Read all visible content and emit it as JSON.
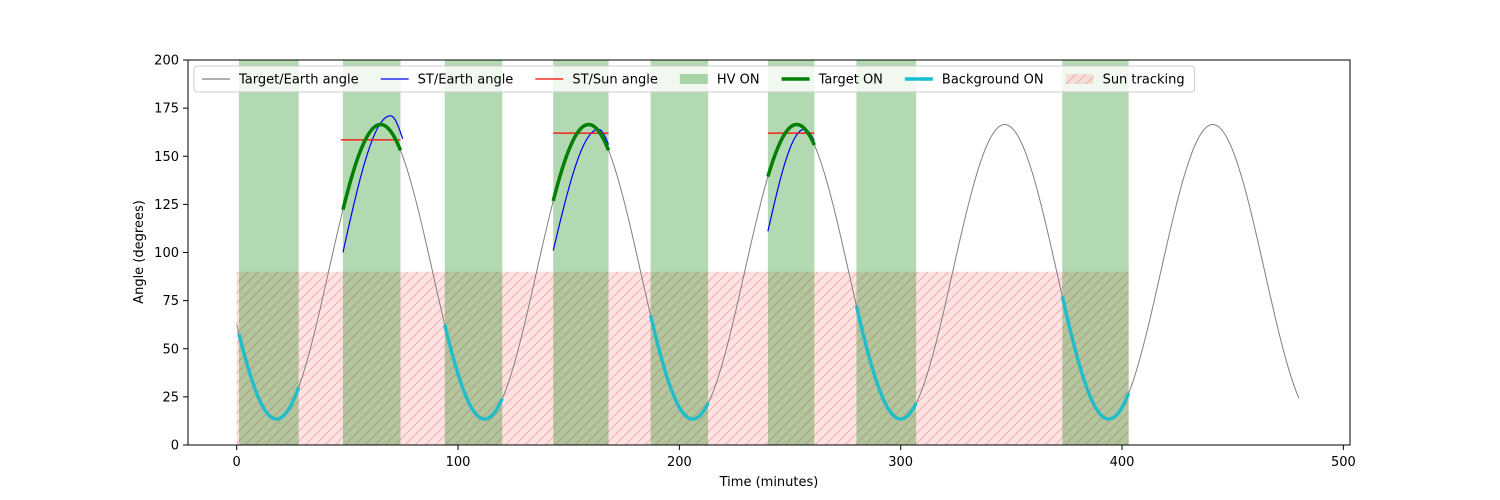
{
  "chart_data": {
    "type": "line",
    "xlabel": "Time (minutes)",
    "ylabel": "Angle (degrees)",
    "xlim": [
      -22,
      503
    ],
    "ylim": [
      0,
      200
    ],
    "xticks": [
      0,
      100,
      200,
      300,
      400,
      500
    ],
    "yticks": [
      0,
      25,
      50,
      75,
      100,
      125,
      150,
      175,
      200
    ],
    "grid": false,
    "legend_position": "top",
    "legend": [
      {
        "key": "target_earth",
        "label": "Target/Earth angle",
        "style": "line",
        "color": "#808080"
      },
      {
        "key": "st_earth",
        "label": "ST/Earth angle",
        "style": "line",
        "color": "#0000ff"
      },
      {
        "key": "st_sun",
        "label": "ST/Sun angle",
        "style": "line",
        "color": "#ff0000"
      },
      {
        "key": "hv_on",
        "label": "HV ON",
        "style": "patch",
        "color": "#008000"
      },
      {
        "key": "target_on",
        "label": "Target ON",
        "style": "thickline",
        "color": "#008000"
      },
      {
        "key": "background_on",
        "label": "Background ON",
        "style": "thickline",
        "color": "#17becf"
      },
      {
        "key": "sun_tracking",
        "label": "Sun tracking",
        "style": "hatch",
        "color": "#ff9999"
      }
    ],
    "target_earth_wave": {
      "period": 94,
      "max": 166.5,
      "min": 13.5,
      "first_max_at": 65,
      "x_range": [
        0,
        480
      ]
    },
    "hv_on_intervals": [
      [
        1,
        28
      ],
      [
        48,
        74
      ],
      [
        94,
        120
      ],
      [
        143,
        168
      ],
      [
        187,
        213
      ],
      [
        240,
        261
      ],
      [
        280,
        307
      ],
      [
        373,
        403
      ]
    ],
    "target_on_intervals": [
      [
        48,
        74
      ],
      [
        143,
        168
      ],
      [
        240,
        261
      ]
    ],
    "background_on_intervals": [
      [
        1,
        28
      ],
      [
        94,
        120
      ],
      [
        187,
        213
      ],
      [
        280,
        307
      ],
      [
        373,
        403
      ]
    ],
    "sun_tracking": {
      "y_range": [
        0,
        90
      ],
      "intervals": [
        [
          0,
          403
        ]
      ]
    },
    "st_earth_segments": [
      {
        "x_range": [
          48,
          75
        ],
        "peak_x": 69.5,
        "start_y": 100,
        "peak_y": 171,
        "end_y": 159
      },
      {
        "x_range": [
          143,
          168
        ],
        "peak_x": 163.5,
        "start_y": 101,
        "peak_y": 164,
        "end_y": 156
      },
      {
        "x_range": [
          240,
          261
        ],
        "peak_x": 256.5,
        "start_y": 111,
        "peak_y": 164,
        "end_y": 158
      }
    ],
    "st_sun_segments": [
      {
        "x_range": [
          47,
          74
        ],
        "y": 158.5
      },
      {
        "x_range": [
          143,
          168
        ],
        "y": 162
      },
      {
        "x_range": [
          240,
          261
        ],
        "y": 162
      }
    ]
  }
}
